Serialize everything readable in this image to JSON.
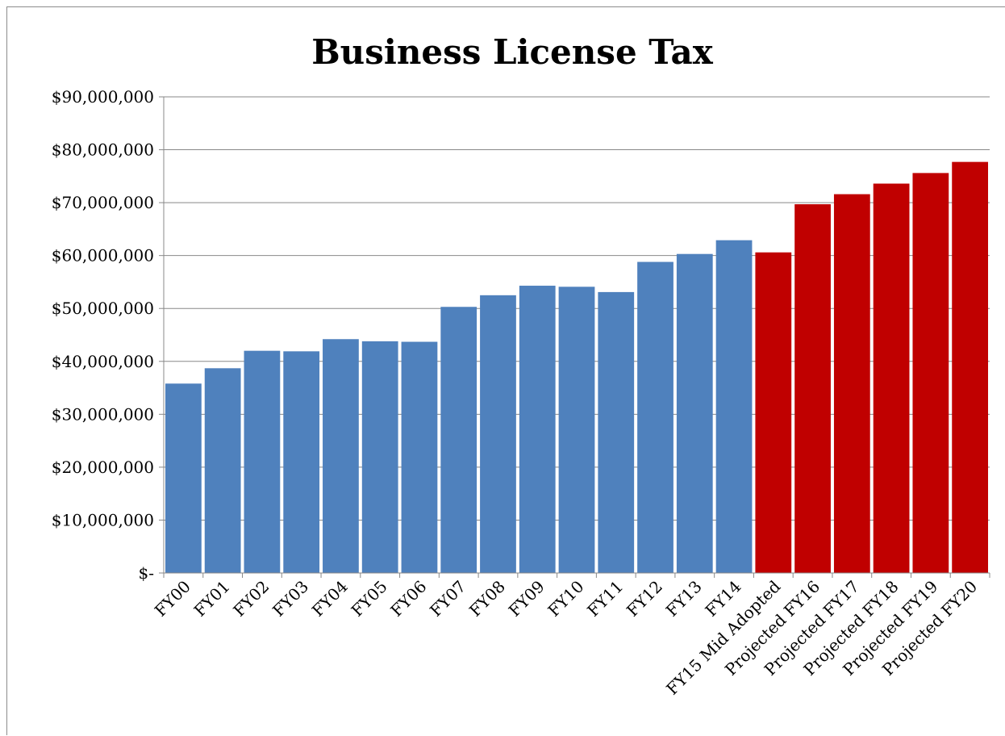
{
  "chart_data": {
    "type": "bar",
    "title": "Business License Tax",
    "xlabel": "",
    "ylabel": "",
    "ylim": [
      0,
      90000000
    ],
    "y_ticks": [
      {
        "value": 0,
        "label": "$-"
      },
      {
        "value": 10000000,
        "label": "$10,000,000"
      },
      {
        "value": 20000000,
        "label": "$20,000,000"
      },
      {
        "value": 30000000,
        "label": "$30,000,000"
      },
      {
        "value": 40000000,
        "label": "$40,000,000"
      },
      {
        "value": 50000000,
        "label": "$50,000,000"
      },
      {
        "value": 60000000,
        "label": "$60,000,000"
      },
      {
        "value": 70000000,
        "label": "$70,000,000"
      },
      {
        "value": 80000000,
        "label": "$80,000,000"
      },
      {
        "value": 90000000,
        "label": "$90,000,000"
      }
    ],
    "grid": true,
    "legend": "none",
    "categories": [
      "FY00",
      "FY01",
      "FY02",
      "FY03",
      "FY04",
      "FY05",
      "FY06",
      "FY07",
      "FY08",
      "FY09",
      "FY10",
      "FY11",
      "FY12",
      "FY13",
      "FY14",
      "FY15 Mid Adopted",
      "Projected FY16",
      "Projected FY17",
      "Projected FY18",
      "Projected FY19",
      "Projected FY20"
    ],
    "values": [
      35800000,
      38700000,
      42000000,
      41900000,
      44200000,
      43800000,
      43700000,
      50300000,
      52500000,
      54300000,
      54100000,
      53100000,
      58800000,
      60300000,
      62900000,
      60600000,
      69700000,
      71600000,
      73600000,
      75600000,
      77700000
    ],
    "bar_colors": [
      "#4f81bd",
      "#4f81bd",
      "#4f81bd",
      "#4f81bd",
      "#4f81bd",
      "#4f81bd",
      "#4f81bd",
      "#4f81bd",
      "#4f81bd",
      "#4f81bd",
      "#4f81bd",
      "#4f81bd",
      "#4f81bd",
      "#4f81bd",
      "#4f81bd",
      "#c00000",
      "#c00000",
      "#c00000",
      "#c00000",
      "#c00000",
      "#c00000"
    ]
  },
  "colors": {
    "actual": "#4f81bd",
    "projected": "#c00000",
    "gridline": "#888888",
    "axis": "#888888"
  }
}
